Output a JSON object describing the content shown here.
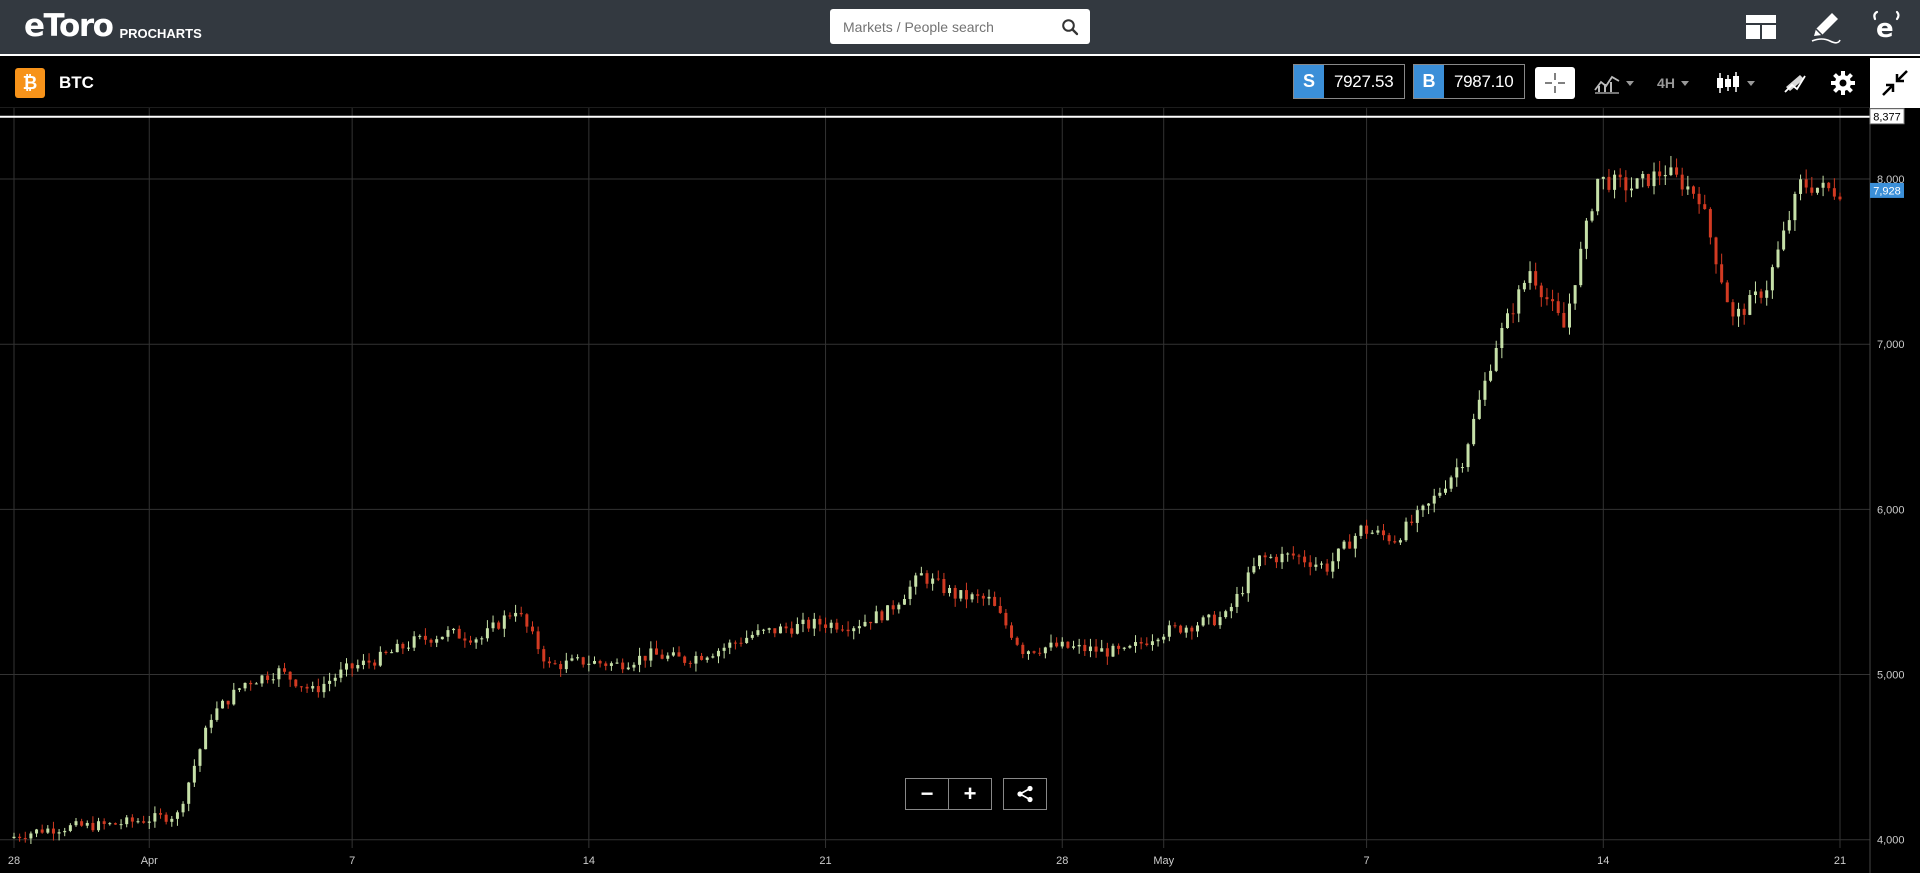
{
  "header": {
    "logo_text": "eToro",
    "logo_sub": "PROCHARTS",
    "search_placeholder": "Markets / People search",
    "icons": [
      "search-icon",
      "layout-icon",
      "pencil-icon",
      "etoro-icon"
    ]
  },
  "instrument": {
    "symbol": "BTC",
    "icon_glyph": "₿",
    "sell_tag": "S",
    "sell_price": "7927.53",
    "buy_tag": "B",
    "buy_price": "7987.10",
    "timeframe": "4H",
    "toolbar_icons": [
      "crosshair-icon",
      "indicators-icon",
      "candles-icon",
      "drawing-icon",
      "gear-icon",
      "collapse-icon"
    ]
  },
  "colors": {
    "up": "#c6e0a8",
    "down": "#d23a22",
    "accent": "#3b8fd8",
    "topbar": "#333940",
    "btc": "#f7931a"
  },
  "chart_data": {
    "type": "candlestick",
    "y_ticks": [
      4000,
      5000,
      6000,
      7000,
      8000
    ],
    "y_tick_labels": [
      "4,000",
      "5,000",
      "6,000",
      "7,000",
      "8,000"
    ],
    "x_ticks": [
      {
        "label": "28",
        "date": "2018-03-28"
      },
      {
        "label": "Apr",
        "date": "2018-04-01"
      },
      {
        "label": "7",
        "date": "2018-04-07"
      },
      {
        "label": "14",
        "date": "2018-04-14"
      },
      {
        "label": "21",
        "date": "2018-04-21"
      },
      {
        "label": "28",
        "date": "2018-04-28"
      },
      {
        "label": "May",
        "date": "2018-05-01"
      },
      {
        "label": "7",
        "date": "2018-05-07"
      },
      {
        "label": "14",
        "date": "2018-05-14"
      },
      {
        "label": "21",
        "date": "2018-05-21"
      }
    ],
    "x_range": [
      "2018-03-28",
      "2018-05-21"
    ],
    "y_range": [
      3980,
      8430
    ],
    "high_label": "8,377",
    "high_value": 8377,
    "current_label": "7,928",
    "current_value": 7928,
    "grid": true,
    "close_path": [
      [
        "2018-03-28",
        4010
      ],
      [
        "2018-03-29",
        4060
      ],
      [
        "2018-03-30",
        4080
      ],
      [
        "2018-03-31",
        4090
      ],
      [
        "2018-04-01",
        4120
      ],
      [
        "2018-04-02",
        4150
      ],
      [
        "2018-04-03",
        4750
      ],
      [
        "2018-04-04",
        4950
      ],
      [
        "2018-04-05",
        5020
      ],
      [
        "2018-04-06",
        4900
      ],
      [
        "2018-04-07",
        5030
      ],
      [
        "2018-04-08",
        5100
      ],
      [
        "2018-04-09",
        5200
      ],
      [
        "2018-04-10",
        5250
      ],
      [
        "2018-04-11",
        5220
      ],
      [
        "2018-04-12",
        5400
      ],
      [
        "2018-04-13",
        5050
      ],
      [
        "2018-04-14",
        5080
      ],
      [
        "2018-04-15",
        5060
      ],
      [
        "2018-04-16",
        5120
      ],
      [
        "2018-04-17",
        5090
      ],
      [
        "2018-04-18",
        5150
      ],
      [
        "2018-04-19",
        5240
      ],
      [
        "2018-04-20",
        5280
      ],
      [
        "2018-04-21",
        5310
      ],
      [
        "2018-04-22",
        5300
      ],
      [
        "2018-04-23",
        5380
      ],
      [
        "2018-04-24",
        5600
      ],
      [
        "2018-04-25",
        5480
      ],
      [
        "2018-04-26",
        5450
      ],
      [
        "2018-04-27",
        5150
      ],
      [
        "2018-04-28",
        5170
      ],
      [
        "2018-04-29",
        5150
      ],
      [
        "2018-04-30",
        5130
      ],
      [
        "2018-05-01",
        5250
      ],
      [
        "2018-05-02",
        5300
      ],
      [
        "2018-05-03",
        5350
      ],
      [
        "2018-05-04",
        5700
      ],
      [
        "2018-05-05",
        5720
      ],
      [
        "2018-05-06",
        5650
      ],
      [
        "2018-05-07",
        5880
      ],
      [
        "2018-05-08",
        5820
      ],
      [
        "2018-05-09",
        6020
      ],
      [
        "2018-05-10",
        6300
      ],
      [
        "2018-05-11",
        7000
      ],
      [
        "2018-05-12",
        7450
      ],
      [
        "2018-05-13",
        7100
      ],
      [
        "2018-05-14",
        8000
      ],
      [
        "2018-05-15",
        7950
      ],
      [
        "2018-05-16",
        8050
      ],
      [
        "2018-05-17",
        7900
      ],
      [
        "2018-05-18",
        7150
      ],
      [
        "2018-05-19",
        7350
      ],
      [
        "2018-05-20",
        7970
      ],
      [
        "2018-05-21",
        7928
      ]
    ]
  }
}
